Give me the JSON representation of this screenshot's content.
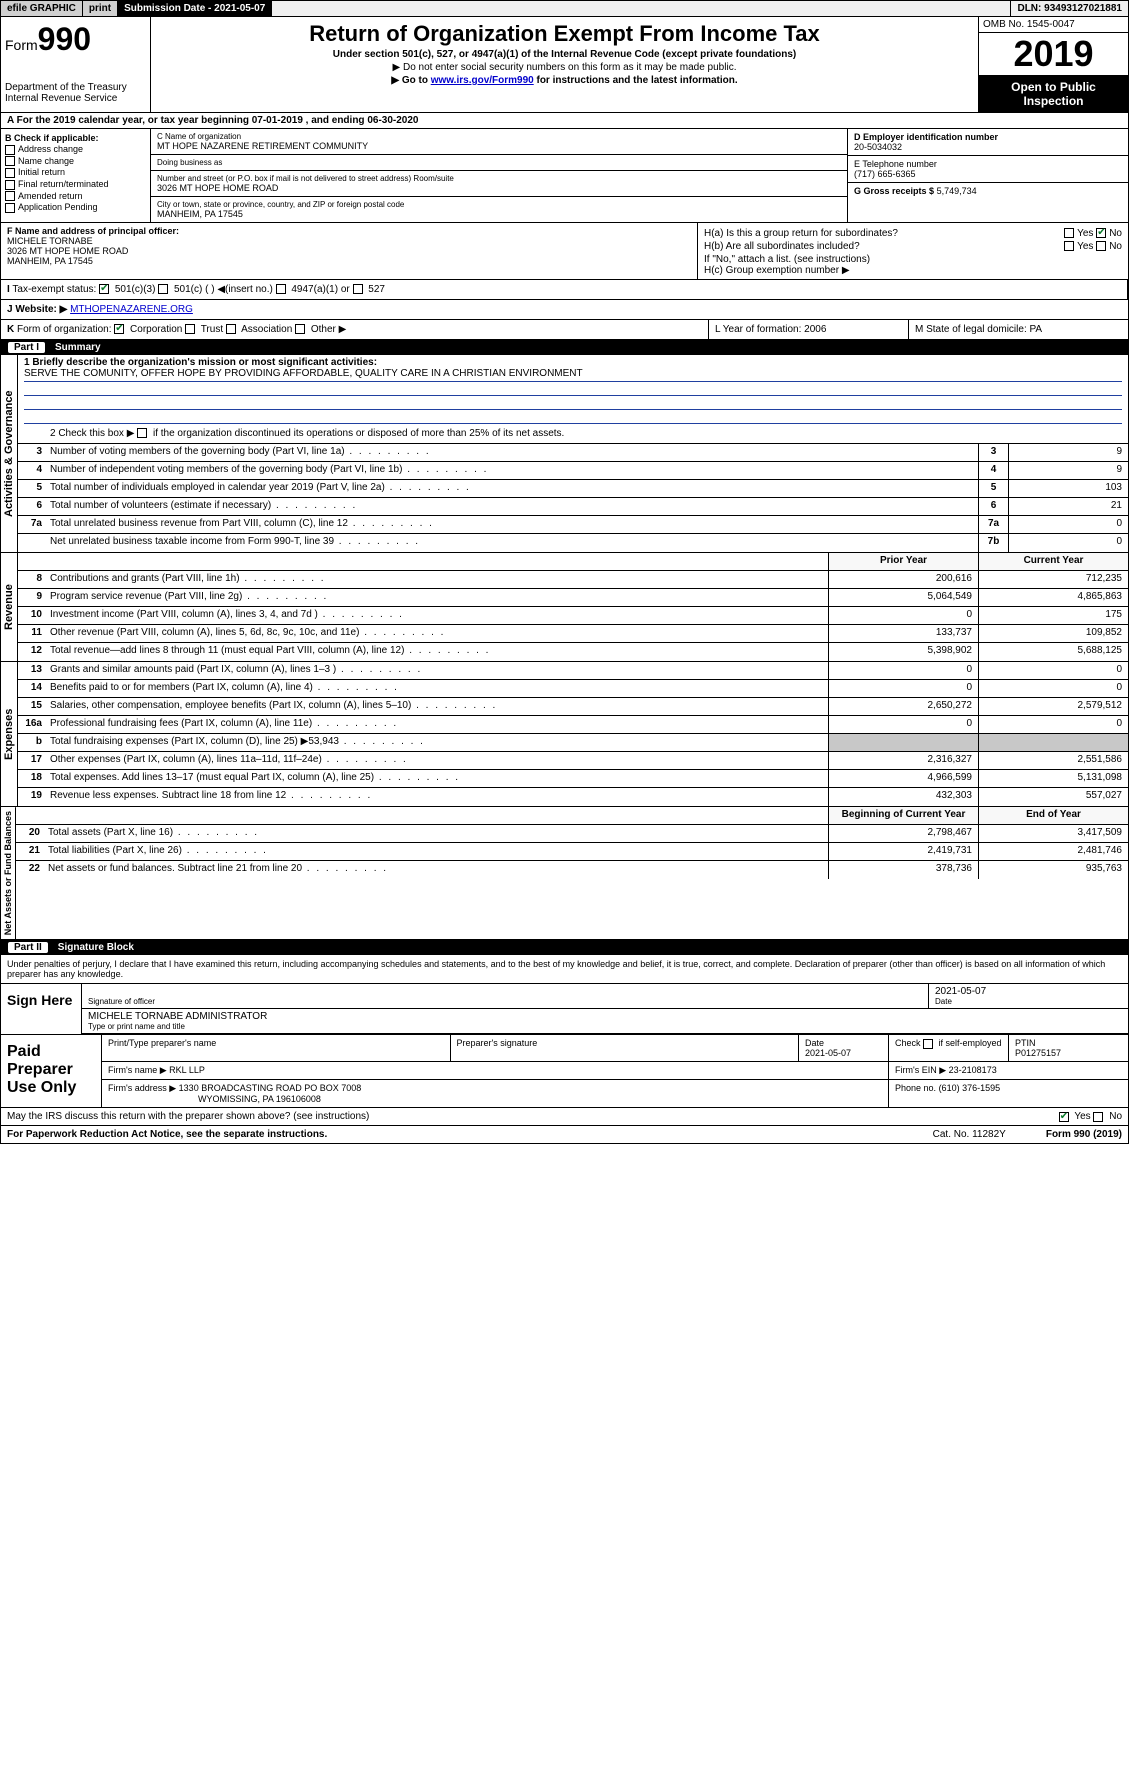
{
  "topbar": {
    "efile": "efile GRAPHIC",
    "print": "print",
    "submission": "Submission Date - 2021-05-07",
    "dln": "DLN: 93493127021881"
  },
  "header": {
    "form_label": "Form",
    "form_number": "990",
    "dept": "Department of the Treasury\nInternal Revenue Service",
    "title": "Return of Organization Exempt From Income Tax",
    "sub1": "Under section 501(c), 527, or 4947(a)(1) of the Internal Revenue Code (except private foundations)",
    "sub2": "▶ Do not enter social security numbers on this form as it may be made public.",
    "sub3_pre": "▶ Go to ",
    "sub3_link": "www.irs.gov/Form990",
    "sub3_post": " for instructions and the latest information.",
    "omb": "OMB No. 1545-0047",
    "year": "2019",
    "open": "Open to Public Inspection"
  },
  "period": "A  For the 2019 calendar year, or tax year beginning 07-01-2019     , and ending 06-30-2020",
  "boxB": {
    "label": "B Check if applicable:",
    "opts": [
      "Address change",
      "Name change",
      "Initial return",
      "Final return/terminated",
      "Amended return",
      "Application Pending"
    ]
  },
  "boxC": {
    "name_lbl": "C Name of organization",
    "name": "MT HOPE NAZARENE RETIREMENT COMMUNITY",
    "dba_lbl": "Doing business as",
    "dba": "",
    "addr_lbl": "Number and street (or P.O. box if mail is not delivered to street address)      Room/suite",
    "addr": "3026 MT HOPE HOME ROAD",
    "city_lbl": "City or town, state or province, country, and ZIP or foreign postal code",
    "city": "MANHEIM, PA  17545"
  },
  "boxD": {
    "lbl": "D Employer identification number",
    "val": "20-5034032"
  },
  "boxE": {
    "lbl": "E Telephone number",
    "val": "(717) 665-6365"
  },
  "boxG": {
    "lbl": "G Gross receipts $",
    "val": "5,749,734"
  },
  "boxF": {
    "lbl": "F  Name and address of principal officer:",
    "name": "MICHELE TORNABE",
    "addr": "3026 MT HOPE HOME ROAD",
    "city": "MANHEIM, PA  17545"
  },
  "boxH": {
    "a": "H(a)  Is this a group return for subordinates?",
    "b": "H(b)  Are all subordinates included?",
    "b_note": "If \"No,\" attach a list. (see instructions)",
    "c": "H(c)  Group exemption number ▶"
  },
  "boxI": "I  Tax-exempt status:        501(c)(3)        501(c) (  ) ◀(insert no.)        4947(a)(1) or        527",
  "boxJ_lbl": "J  Website: ▶",
  "boxJ_val": "MTHOPENAZARENE.ORG",
  "boxK": "K Form of organization:      Corporation      Trust      Association      Other ▶",
  "boxL": "L Year of formation: 2006",
  "boxM": "M State of legal domicile: PA",
  "partI": {
    "num": "Part I",
    "title": "Summary"
  },
  "mission_lbl": "1  Briefly describe the organization's mission or most significant activities:",
  "mission": "SERVE THE COMUNITY, OFFER HOPE BY PROVIDING AFFORDABLE, QUALITY CARE IN A CHRISTIAN ENVIRONMENT",
  "line2": "2   Check this box ▶      if the organization discontinued its operations or disposed of more than 25% of its net assets.",
  "gov": [
    {
      "n": "3",
      "d": "Number of voting members of the governing body (Part VI, line 1a)",
      "nb": "3",
      "v": "9"
    },
    {
      "n": "4",
      "d": "Number of independent voting members of the governing body (Part VI, line 1b)",
      "nb": "4",
      "v": "9"
    },
    {
      "n": "5",
      "d": "Total number of individuals employed in calendar year 2019 (Part V, line 2a)",
      "nb": "5",
      "v": "103"
    },
    {
      "n": "6",
      "d": "Total number of volunteers (estimate if necessary)",
      "nb": "6",
      "v": "21"
    },
    {
      "n": "7a",
      "d": "Total unrelated business revenue from Part VIII, column (C), line 12",
      "nb": "7a",
      "v": "0"
    },
    {
      "n": "",
      "d": "Net unrelated business taxable income from Form 990-T, line 39",
      "nb": "7b",
      "v": "0"
    }
  ],
  "rev_hdr": {
    "c1": "Prior Year",
    "c2": "Current Year"
  },
  "rev": [
    {
      "n": "8",
      "d": "Contributions and grants (Part VIII, line 1h)",
      "p": "200,616",
      "c": "712,235"
    },
    {
      "n": "9",
      "d": "Program service revenue (Part VIII, line 2g)",
      "p": "5,064,549",
      "c": "4,865,863"
    },
    {
      "n": "10",
      "d": "Investment income (Part VIII, column (A), lines 3, 4, and 7d )",
      "p": "0",
      "c": "175"
    },
    {
      "n": "11",
      "d": "Other revenue (Part VIII, column (A), lines 5, 6d, 8c, 9c, 10c, and 11e)",
      "p": "133,737",
      "c": "109,852"
    },
    {
      "n": "12",
      "d": "Total revenue—add lines 8 through 11 (must equal Part VIII, column (A), line 12)",
      "p": "5,398,902",
      "c": "5,688,125"
    }
  ],
  "exp": [
    {
      "n": "13",
      "d": "Grants and similar amounts paid (Part IX, column (A), lines 1–3 )",
      "p": "0",
      "c": "0"
    },
    {
      "n": "14",
      "d": "Benefits paid to or for members (Part IX, column (A), line 4)",
      "p": "0",
      "c": "0"
    },
    {
      "n": "15",
      "d": "Salaries, other compensation, employee benefits (Part IX, column (A), lines 5–10)",
      "p": "2,650,272",
      "c": "2,579,512"
    },
    {
      "n": "16a",
      "d": "Professional fundraising fees (Part IX, column (A), line 11e)",
      "p": "0",
      "c": "0"
    },
    {
      "n": "b",
      "d": "Total fundraising expenses (Part IX, column (D), line 25) ▶53,943",
      "p": "",
      "c": "",
      "shade": true
    },
    {
      "n": "17",
      "d": "Other expenses (Part IX, column (A), lines 11a–11d, 11f–24e)",
      "p": "2,316,327",
      "c": "2,551,586"
    },
    {
      "n": "18",
      "d": "Total expenses. Add lines 13–17 (must equal Part IX, column (A), line 25)",
      "p": "4,966,599",
      "c": "5,131,098"
    },
    {
      "n": "19",
      "d": "Revenue less expenses. Subtract line 18 from line 12",
      "p": "432,303",
      "c": "557,027"
    }
  ],
  "na_hdr": {
    "c1": "Beginning of Current Year",
    "c2": "End of Year"
  },
  "na": [
    {
      "n": "20",
      "d": "Total assets (Part X, line 16)",
      "p": "2,798,467",
      "c": "3,417,509"
    },
    {
      "n": "21",
      "d": "Total liabilities (Part X, line 26)",
      "p": "2,419,731",
      "c": "2,481,746"
    },
    {
      "n": "22",
      "d": "Net assets or fund balances. Subtract line 21 from line 20",
      "p": "378,736",
      "c": "935,763"
    }
  ],
  "side": {
    "gov": "Activities & Governance",
    "rev": "Revenue",
    "exp": "Expenses",
    "na": "Net Assets or Fund Balances"
  },
  "partII": {
    "num": "Part II",
    "title": "Signature Block"
  },
  "perjury": "Under penalties of perjury, I declare that I have examined this return, including accompanying schedules and statements, and to the best of my knowledge and belief, it is true, correct, and complete. Declaration of preparer (other than officer) is based on all information of which preparer has any knowledge.",
  "sign": {
    "here": "Sign Here",
    "sig_lbl": "Signature of officer",
    "date": "2021-05-07",
    "date_lbl": "Date",
    "name": "MICHELE TORNABE  ADMINISTRATOR",
    "name_lbl": "Type or print name and title"
  },
  "paid": {
    "lbl": "Paid Preparer Use Only",
    "h": [
      "Print/Type preparer's name",
      "Preparer's signature",
      "Date",
      "",
      "PTIN"
    ],
    "r1": [
      "",
      "",
      "2021-05-07",
      "Check      if self-employed",
      "P01275157"
    ],
    "firm_lbl": "Firm's name   ▶",
    "firm": "RKL LLP",
    "ein_lbl": "Firm's EIN ▶",
    "ein": "23-2108173",
    "addr_lbl": "Firm's address ▶",
    "addr": "1330 BROADCASTING ROAD PO BOX 7008",
    "addr2": "WYOMISSING, PA  196106008",
    "phone_lbl": "Phone no.",
    "phone": "(610) 376-1595"
  },
  "discuss": "May the IRS discuss this return with the preparer shown above? (see instructions)",
  "footer": {
    "pra": "For Paperwork Reduction Act Notice, see the separate instructions.",
    "cat": "Cat. No. 11282Y",
    "form": "Form 990 (2019)"
  }
}
